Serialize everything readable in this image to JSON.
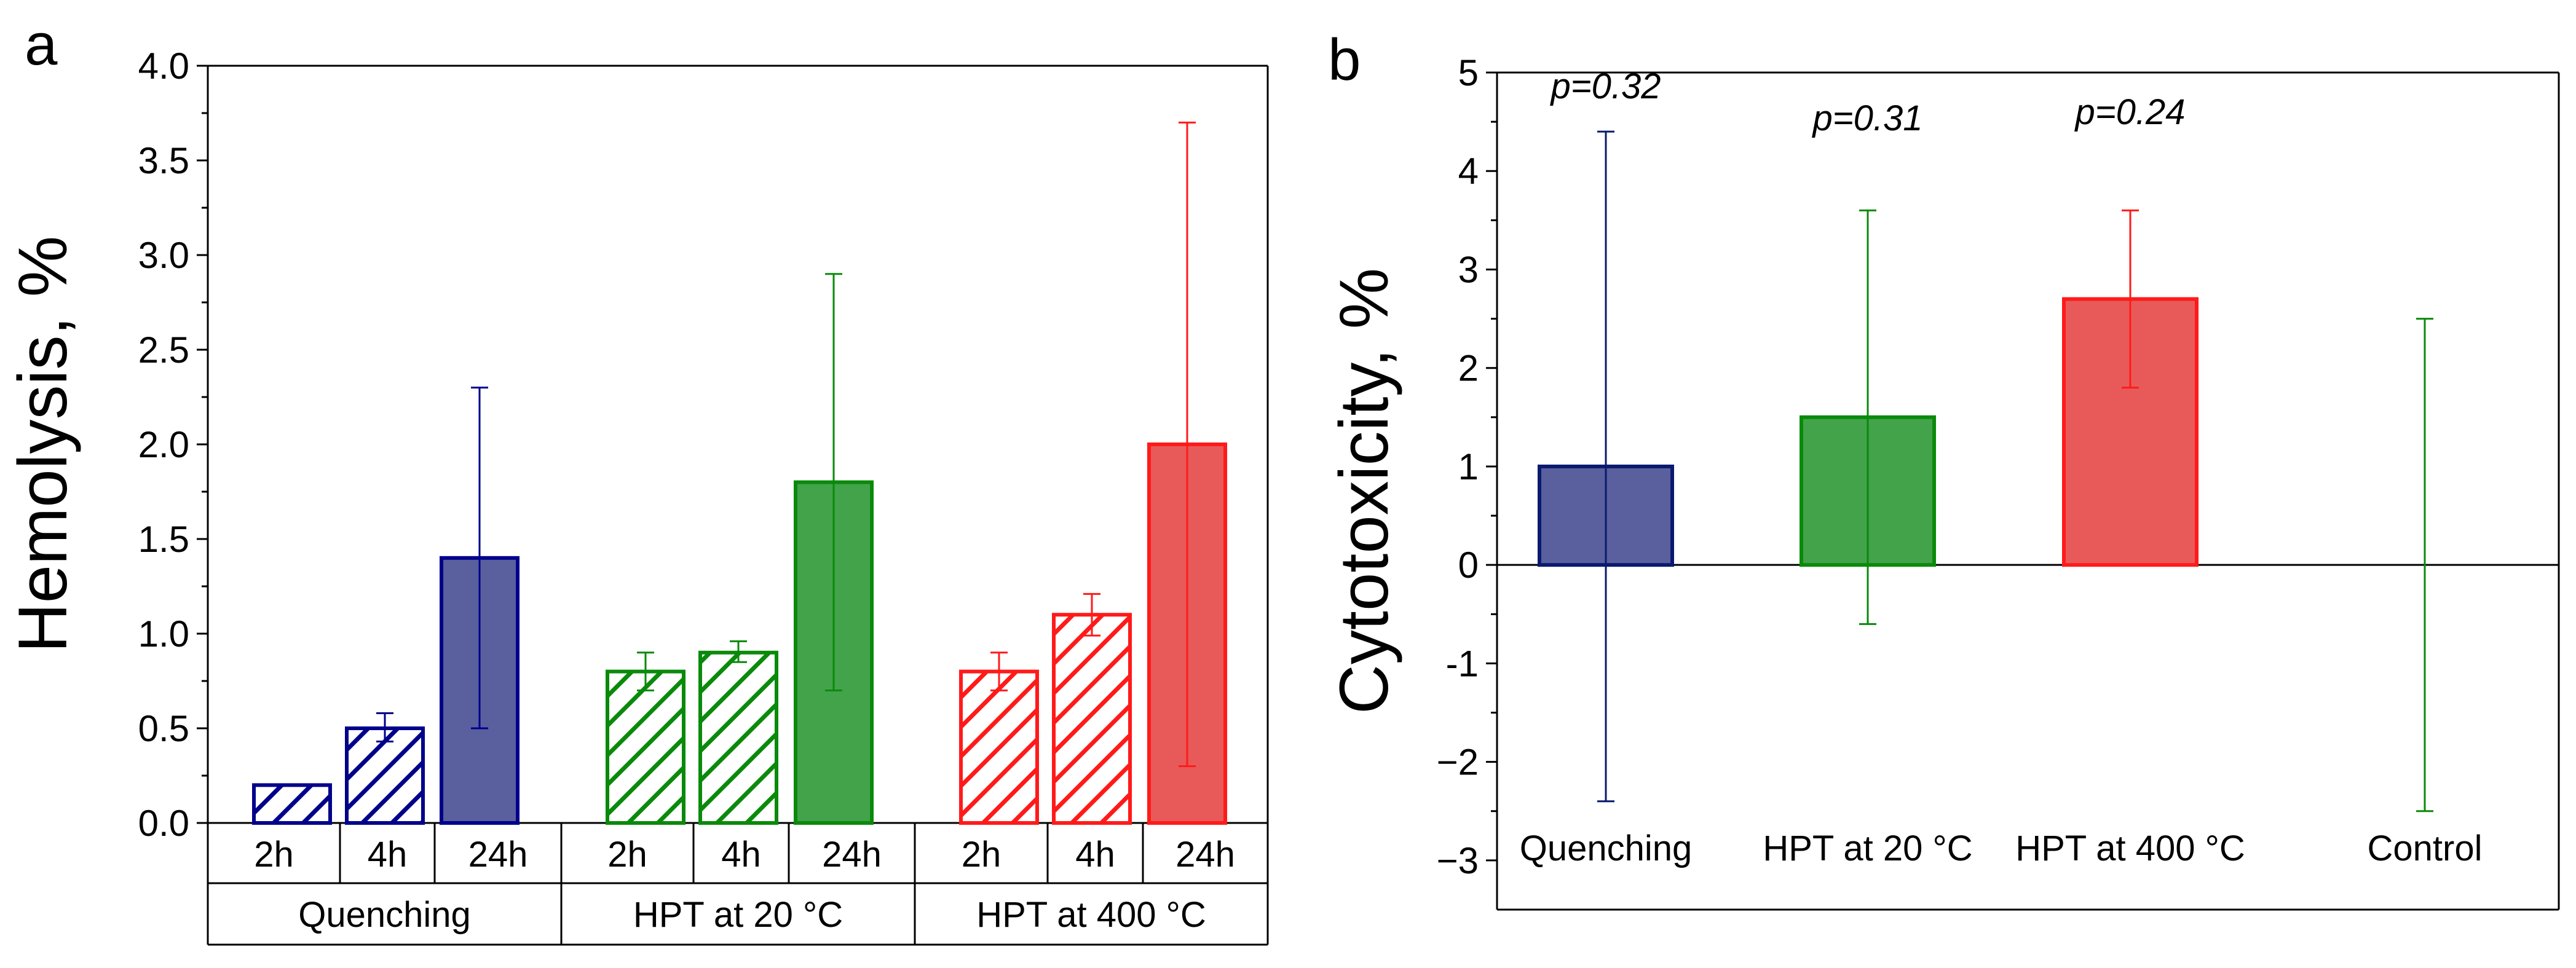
{
  "chart_data": [
    {
      "type": "bar",
      "panel": "a",
      "title": "",
      "xlabel": "",
      "ylabel": "Hemolysis, %",
      "ylim": [
        0,
        4.0
      ],
      "yticks": [
        "0.0",
        "0.5",
        "1.0",
        "1.5",
        "2.0",
        "2.5",
        "3.0",
        "3.5",
        "4.0"
      ],
      "groups": [
        {
          "name": "Quenching",
          "color": "#00008b",
          "fill_solid": "#5a5f9e",
          "bars": [
            {
              "label": "2h",
              "value": 0.2,
              "err_low": 0.2,
              "err_high": 0.2,
              "fill": "hatch"
            },
            {
              "label": "4h",
              "value": 0.5,
              "err_low": 0.43,
              "err_high": 0.58,
              "fill": "hatch"
            },
            {
              "label": "24h",
              "value": 1.4,
              "err_low": 0.5,
              "err_high": 2.3,
              "fill": "solid"
            }
          ]
        },
        {
          "name": "HPT at 20 °C",
          "color": "#0a8a0a",
          "fill_solid": "#43a34b",
          "bars": [
            {
              "label": "2h",
              "value": 0.8,
              "err_low": 0.7,
              "err_high": 0.9,
              "fill": "hatch"
            },
            {
              "label": "4h",
              "value": 0.9,
              "err_low": 0.85,
              "err_high": 0.96,
              "fill": "hatch"
            },
            {
              "label": "24h",
              "value": 1.8,
              "err_low": 0.7,
              "err_high": 2.9,
              "fill": "solid"
            }
          ]
        },
        {
          "name": "HPT at 400 °C",
          "color": "#ff1a1a",
          "fill_solid": "#e85a5a",
          "bars": [
            {
              "label": "2h",
              "value": 0.8,
              "err_low": 0.7,
              "err_high": 0.9,
              "fill": "hatch"
            },
            {
              "label": "4h",
              "value": 1.1,
              "err_low": 0.99,
              "err_high": 1.21,
              "fill": "hatch"
            },
            {
              "label": "24h",
              "value": 2.0,
              "err_low": 0.3,
              "err_high": 3.7,
              "fill": "solid"
            }
          ]
        }
      ]
    },
    {
      "type": "bar",
      "panel": "b",
      "title": "",
      "xlabel": "",
      "ylabel": "Cytotoxicity, %",
      "ylim": [
        -3.5,
        5
      ],
      "yticks": [
        "5",
        "4",
        "3",
        "2",
        "1",
        "0",
        "-1",
        "−2",
        "−3"
      ],
      "categories": [
        "Quenching",
        "HPT at 20 °C",
        "HPT at 400 °C",
        "Control"
      ],
      "bars": [
        {
          "label": "Quenching",
          "value": 1.0,
          "err_low": -2.4,
          "err_high": 4.4,
          "p": "p=0.32",
          "color": "#0a1a6e",
          "fill": "#5a5f9e"
        },
        {
          "label": "HPT at 20 °C",
          "value": 1.5,
          "err_low": -0.6,
          "err_high": 3.6,
          "p": "p=0.31",
          "color": "#0a8a0a",
          "fill": "#43a34b"
        },
        {
          "label": "HPT at 400 °C",
          "value": 2.7,
          "err_low": 1.8,
          "err_high": 3.6,
          "p": "p=0.24",
          "color": "#ff1a1a",
          "fill": "#e85a5a"
        },
        {
          "label": "Control",
          "value": 0.0,
          "err_low": -2.5,
          "err_high": 2.5,
          "p": "",
          "color": "#0a8a0a",
          "fill": "none"
        }
      ]
    }
  ]
}
